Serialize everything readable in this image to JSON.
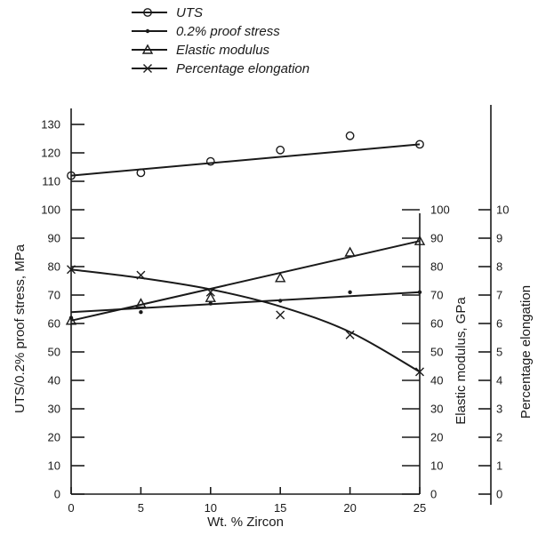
{
  "chart_data": {
    "type": "line",
    "xlabel": "Wt. % Zircon",
    "x_ticks": [
      0,
      5,
      10,
      15,
      20,
      25
    ],
    "xlim": [
      0,
      25
    ],
    "y_left": {
      "label": "UTS/0.2% proof stress, MPa",
      "lim": [
        0,
        130
      ],
      "ticks": [
        0,
        10,
        20,
        30,
        40,
        50,
        60,
        70,
        80,
        90,
        100,
        110,
        120,
        130
      ]
    },
    "y_mid": {
      "label": "Elastic modulus, GPa",
      "lim": [
        0,
        100
      ],
      "ticks": [
        0,
        10,
        20,
        30,
        40,
        50,
        60,
        70,
        80,
        90,
        100
      ]
    },
    "y_right": {
      "label": "Percentage elongation",
      "lim": [
        0,
        10
      ],
      "ticks": [
        0,
        1,
        2,
        3,
        4,
        5,
        6,
        7,
        8,
        9,
        10
      ]
    },
    "legend_position": "top",
    "series": [
      {
        "name": "UTS",
        "marker": "circle",
        "axis": "left",
        "points": [
          [
            0,
            112
          ],
          [
            5,
            113
          ],
          [
            10,
            117
          ],
          [
            15,
            121
          ],
          [
            20,
            126
          ],
          [
            25,
            123
          ]
        ],
        "fit": [
          [
            0,
            112
          ],
          [
            25,
            123
          ]
        ]
      },
      {
        "name": "0.2% proof stress",
        "marker": "dot",
        "axis": "left",
        "points": [
          [
            0,
            62
          ],
          [
            5,
            64
          ],
          [
            10,
            67
          ],
          [
            15,
            68
          ],
          [
            20,
            71
          ],
          [
            25,
            71
          ]
        ],
        "fit": [
          [
            0,
            64
          ],
          [
            25,
            71
          ]
        ]
      },
      {
        "name": "Elastic modulus",
        "marker": "triangle",
        "axis": "mid",
        "points": [
          [
            0,
            61
          ],
          [
            5,
            67
          ],
          [
            10,
            69
          ],
          [
            15,
            76
          ],
          [
            20,
            85
          ],
          [
            25,
            89
          ]
        ],
        "fit": [
          [
            0,
            61
          ],
          [
            25,
            89
          ]
        ]
      },
      {
        "name": "Percentage elongation",
        "marker": "cross",
        "axis": "right",
        "points": [
          [
            0,
            7.9
          ],
          [
            5,
            7.7
          ],
          [
            10,
            7.1
          ],
          [
            15,
            6.3
          ],
          [
            20,
            5.6
          ],
          [
            25,
            4.3
          ]
        ],
        "fit": [
          [
            0,
            7.9
          ],
          [
            5,
            7.6
          ],
          [
            10,
            7.2
          ],
          [
            15,
            6.6
          ],
          [
            20,
            5.7
          ],
          [
            25,
            4.3
          ]
        ]
      }
    ]
  }
}
